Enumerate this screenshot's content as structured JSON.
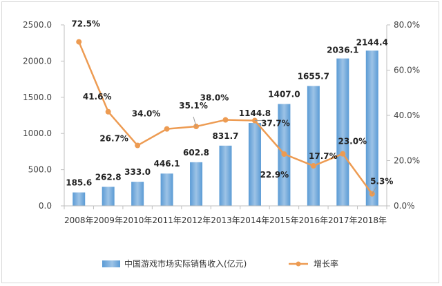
{
  "chart_data": {
    "type": "bar",
    "categories": [
      "2008年",
      "2009年",
      "2010年",
      "2011年",
      "2012年",
      "2013年",
      "2014年",
      "2015年",
      "2016年",
      "2017年",
      "2018年"
    ],
    "series": [
      {
        "name": "中国游戏市场实际销售收入(亿元)",
        "type": "bar",
        "axis": "left",
        "values": [
          185.6,
          262.8,
          333.0,
          446.1,
          602.8,
          831.7,
          1144.8,
          1407.0,
          1655.7,
          2036.1,
          2144.4
        ],
        "labels": [
          "185.6",
          "262.8",
          "333.0",
          "446.1",
          "602.8",
          "831.7",
          "1144.8",
          "1407.0",
          "1655.7",
          "2036.1",
          "2144.4"
        ]
      },
      {
        "name": "增长率",
        "type": "line",
        "axis": "right",
        "values": [
          72.5,
          41.6,
          26.7,
          34.0,
          35.1,
          38.0,
          37.7,
          22.9,
          17.7,
          23.0,
          5.3
        ],
        "labels": [
          "72.5%",
          "41.6%",
          "26.7%",
          "34.0%",
          "35.1%",
          "38.0%",
          "37.7%",
          "22.9%",
          "17.7%",
          "23.0%",
          "5.3%"
        ]
      }
    ],
    "ylim_left": [
      0,
      2500
    ],
    "ylim_right": [
      0,
      80
    ],
    "yticks_left": [
      "0.0",
      "500.0",
      "1000.0",
      "1500.0",
      "2000.0",
      "2500.0"
    ],
    "yticks_right": [
      "0.0%",
      "20.0%",
      "40.0%",
      "60.0%",
      "80.0%"
    ],
    "grid": false,
    "legend_position": "bottom",
    "colors": {
      "bar": "#5b9bd5",
      "bar_light": "#9dc3e6",
      "line": "#ed9b52",
      "axis": "#bfbfbf",
      "label_leader": "#999999"
    }
  }
}
